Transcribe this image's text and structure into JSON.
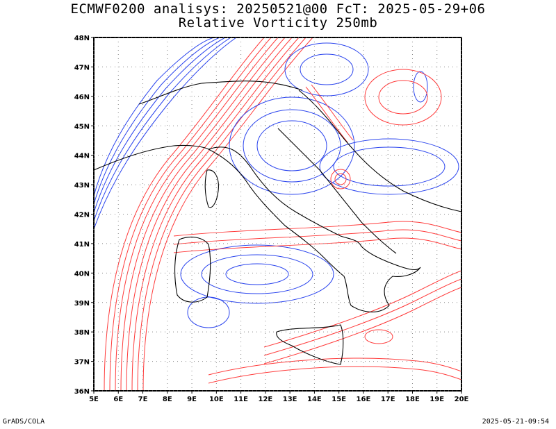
{
  "title": {
    "line1": "ECMWF0200 analisys: 20250521@00 FcT: 2025-05-29+06",
    "line2": "Relative Vorticity 250mb"
  },
  "footer": {
    "left": "GrADS/COLA",
    "right": "2025-05-21-09:54"
  },
  "map": {
    "lon_range": [
      5,
      20
    ],
    "lat_range": [
      36,
      48
    ],
    "x_tick_labels": [
      "5E",
      "6E",
      "7E",
      "8E",
      "9E",
      "10E",
      "11E",
      "12E",
      "13E",
      "14E",
      "15E",
      "16E",
      "17E",
      "18E",
      "19E",
      "20E"
    ],
    "y_tick_labels": [
      "36N",
      "37N",
      "38N",
      "39N",
      "40N",
      "41N",
      "42N",
      "43N",
      "44N",
      "45N",
      "46N",
      "47N",
      "48N"
    ],
    "grid": "dotted",
    "colors": {
      "positive_vorticity": "#ff3a3a",
      "negative_vorticity": "#2a44ee",
      "coastline": "#000000",
      "background": "#ffffff"
    }
  }
}
